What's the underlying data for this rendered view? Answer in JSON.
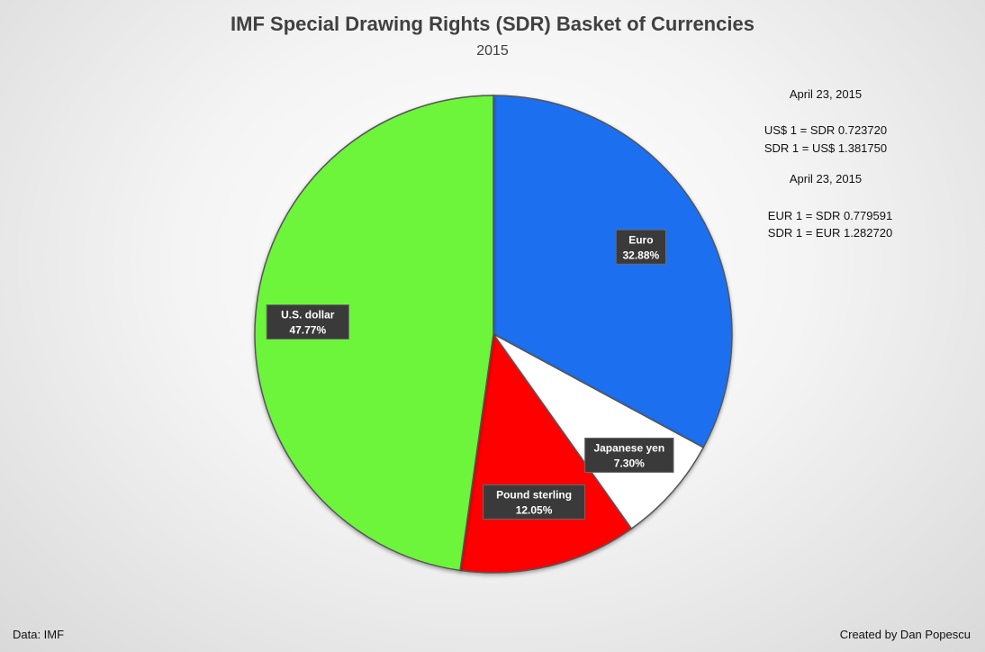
{
  "chart_data": {
    "type": "pie",
    "title": "IMF Special Drawing Rights (SDR) Basket of Currencies",
    "subtitle": "2015",
    "slices": [
      {
        "label": "Euro",
        "value": 32.88,
        "value_label": "32.88%",
        "color": "#1e6fef"
      },
      {
        "label": "Japanese yen",
        "value": 7.3,
        "value_label": "7.30%",
        "color": "#ffffff"
      },
      {
        "label": "Pound sterling",
        "value": 12.05,
        "value_label": "12.05%",
        "color": "#ff0000"
      },
      {
        "label": "U.S. dollar",
        "value": 47.77,
        "value_label": "47.77%",
        "color": "#6cf53a"
      }
    ]
  },
  "notes": {
    "usd_date": "April 23, 2015",
    "usd_line1": "US$ 1 = SDR 0.723720",
    "usd_line2": "SDR 1 = US$ 1.381750",
    "eur_date": "April 23, 2015",
    "eur_line1": "EUR 1 = SDR 0.779591",
    "eur_line2": "SDR 1 = EUR 1.282720"
  },
  "footer": {
    "source": "Data: IMF",
    "credit": "Created by Dan Popescu"
  }
}
